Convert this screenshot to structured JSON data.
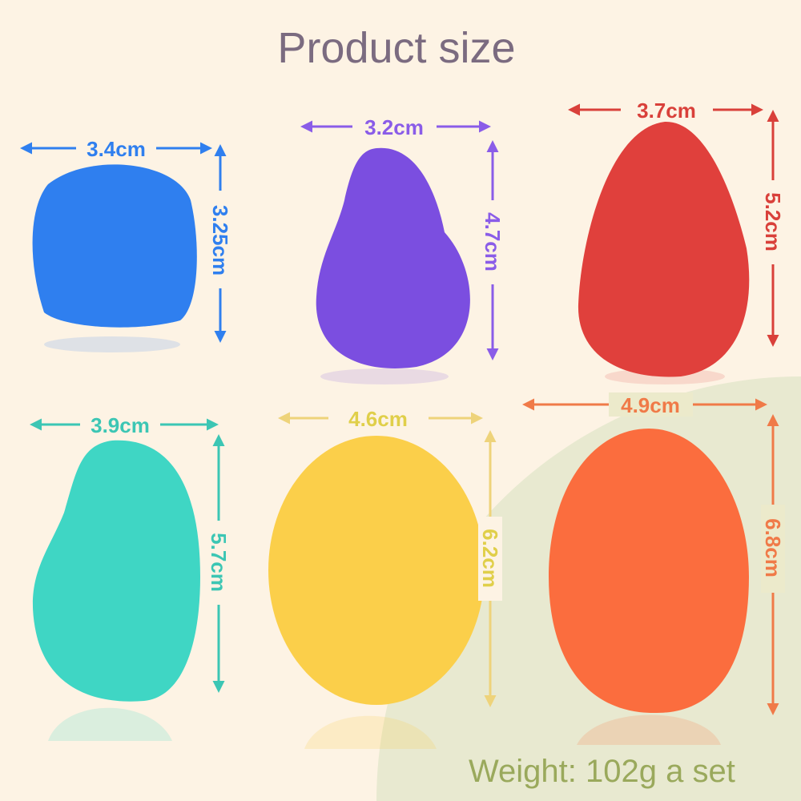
{
  "title": "Product size",
  "weight": "Weight: 102g a set",
  "products": [
    {
      "name": "blue",
      "color": "#2f7fef",
      "width": "3.4cm",
      "height": "3.25cm"
    },
    {
      "name": "purple",
      "color": "#7b4ee0",
      "width": "3.2cm",
      "height": "4.7cm"
    },
    {
      "name": "red",
      "color": "#e0403c",
      "width": "3.7cm",
      "height": "5.2cm"
    },
    {
      "name": "teal",
      "color": "#3fd6c4",
      "width": "3.9cm",
      "height": "5.7cm"
    },
    {
      "name": "yellow",
      "color": "#fbcf4a",
      "width": "4.6cm",
      "height": "6.2cm"
    },
    {
      "name": "orange",
      "color": "#fb6d3e",
      "width": "4.9cm",
      "height": "6.8cm"
    }
  ]
}
